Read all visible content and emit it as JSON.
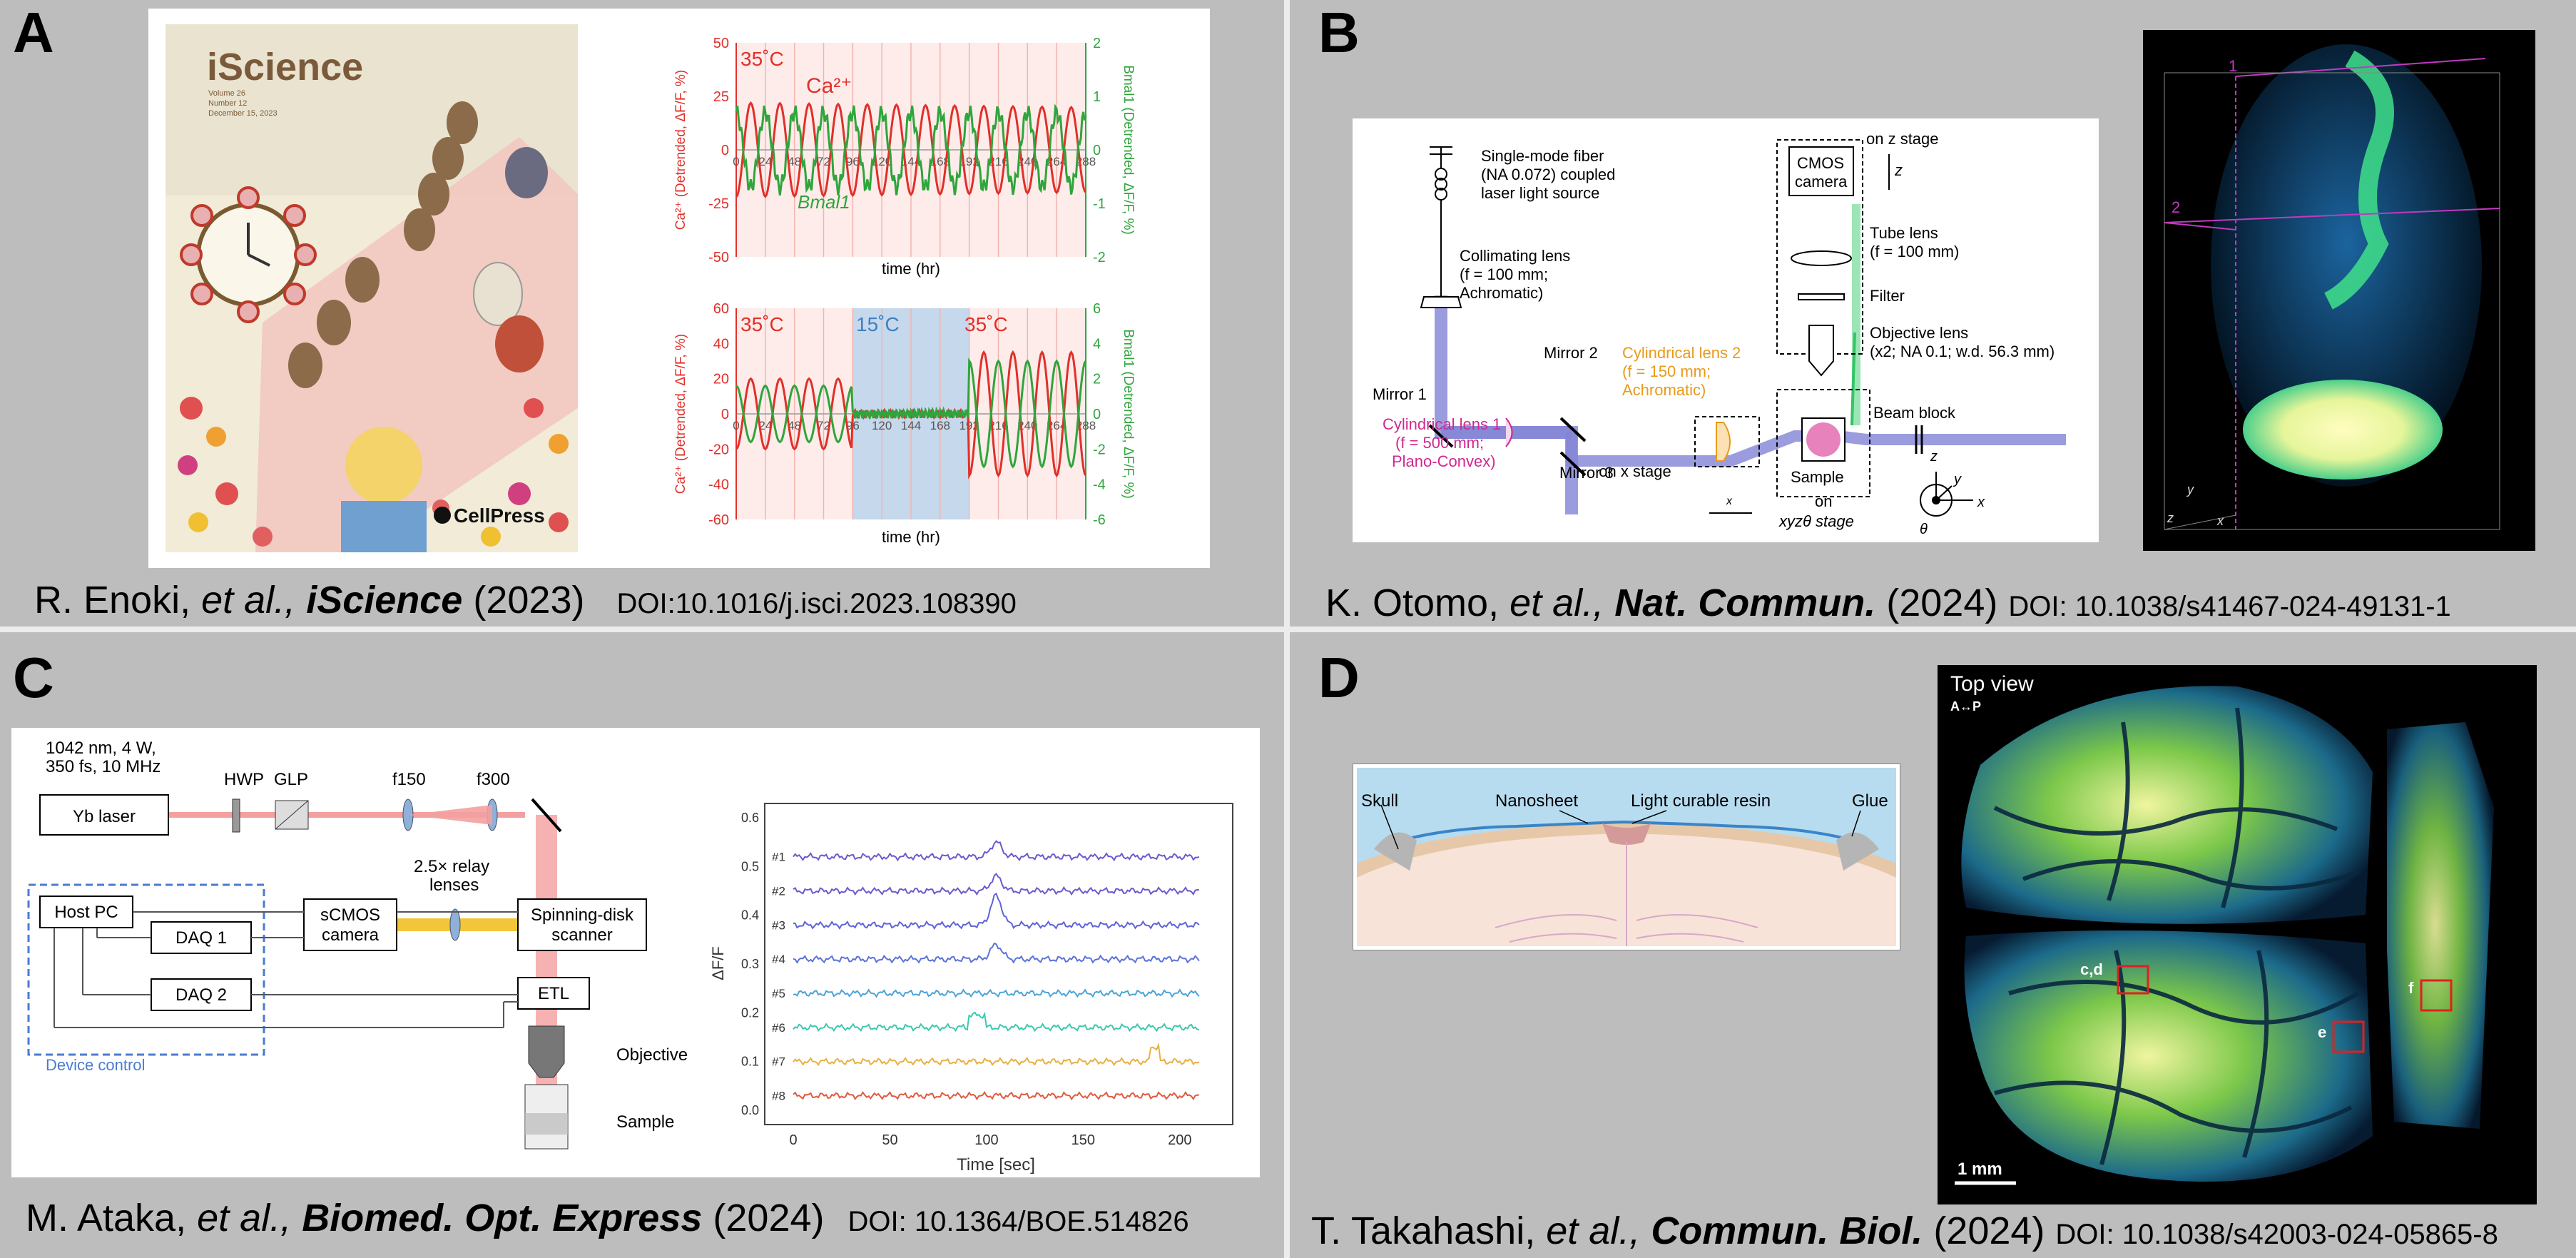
{
  "panels": [
    {
      "letter": "A",
      "author": "R. Enoki,",
      "etal": "et al.,",
      "journal": "iScience",
      "year": "(2023)",
      "doi": "DOI:10.1016/j.isci.2023.108390"
    },
    {
      "letter": "B",
      "author": "K. Otomo,",
      "etal": "et al.,",
      "journal": "Nat. Commun.",
      "year": "(2024)",
      "doi": "DOI: 10.1038/s41467-024-49131-1"
    },
    {
      "letter": "C",
      "author": "M. Ataka,",
      "etal": "et al.,",
      "journal": "Biomed. Opt. Express",
      "year": "(2024)",
      "doi": "DOI: 10.1364/BOE.514826"
    },
    {
      "letter": "D",
      "author": "T. Takahashi,",
      "etal": "et al.,",
      "journal": "Commun. Biol.",
      "year": "(2024)",
      "doi": "DOI: 10.1038/s42003-024-05865-8"
    }
  ],
  "cover": {
    "title": "iScience",
    "volume": "Volume 26",
    "number": "Number 12",
    "date": "December 15, 2023",
    "publisher": "CellPress"
  },
  "chart_data": [
    {
      "type": "line",
      "title": "35˚C",
      "x": [
        0,
        24,
        48,
        72,
        96,
        120,
        144,
        168,
        192,
        216,
        240,
        264,
        288
      ],
      "xlabel": "time (hr)",
      "ylabel": "Ca²⁺ (Detrended, ΔF/F, %)",
      "ylabel2": "Bmal1 (Detrended, ΔF/F, %)",
      "ylim": [
        -50,
        50
      ],
      "yticks": [
        50,
        25,
        0,
        -25,
        -50
      ],
      "ylim2": [
        -2,
        2
      ],
      "yticks2": [
        2,
        1,
        0,
        -1,
        -2
      ],
      "xtick_labels": [
        "0",
        "24",
        "48",
        "72",
        "96",
        "120",
        "144",
        "168",
        "192",
        "216",
        "240",
        "264",
        "288"
      ],
      "series": [
        {
          "name": "Ca²⁺",
          "color": "#e0302a",
          "period": 24,
          "amplitude": 22
        },
        {
          "name": "Bmal1",
          "color": "#2fa53c",
          "period": 24,
          "amplitude": 0.7
        }
      ],
      "temperature": "35˚C"
    },
    {
      "type": "line",
      "x": [
        0,
        24,
        48,
        72,
        96,
        120,
        144,
        168,
        192,
        216,
        240,
        264,
        288
      ],
      "xlabel": "time (hr)",
      "ylabel": "Ca²⁺ (Detrended, ΔF/F, %)",
      "ylabel2": "Bmal1 (Detrended, ΔF/F, %)",
      "ylim": [
        -60,
        60
      ],
      "yticks": [
        60,
        40,
        20,
        0,
        -20,
        -40,
        -60
      ],
      "ylim2": [
        -6,
        6
      ],
      "yticks2": [
        6,
        4,
        2,
        0,
        -2,
        -4,
        -6
      ],
      "xtick_labels": [
        "0",
        "24",
        "48",
        "72",
        "96",
        "120",
        "144",
        "168",
        "192",
        "216",
        "240",
        "264",
        "288"
      ],
      "temperatures": [
        "35˚C",
        "15˚C",
        "35˚C"
      ],
      "cold_window": [
        96,
        192
      ],
      "series": [
        {
          "name": "Ca²⁺",
          "color": "#e0302a"
        },
        {
          "name": "Bmal1",
          "color": "#2fa53c"
        }
      ]
    },
    {
      "type": "line",
      "xlabel": "Time [sec]",
      "ylabel": "ΔF/F",
      "xticks": [
        0,
        50,
        100,
        150,
        200
      ],
      "yticks": [
        0.6,
        0.5,
        0.4,
        0.3,
        0.2,
        0.1,
        0.0
      ],
      "series": [
        {
          "name": "#1",
          "color": "#6a5acd"
        },
        {
          "name": "#2",
          "color": "#6a5acd"
        },
        {
          "name": "#3",
          "color": "#5f63d8"
        },
        {
          "name": "#4",
          "color": "#5a72d8"
        },
        {
          "name": "#5",
          "color": "#4aa3d8"
        },
        {
          "name": "#6",
          "color": "#3cc8b0"
        },
        {
          "name": "#7",
          "color": "#e8b040"
        },
        {
          "name": "#8",
          "color": "#e05a40"
        }
      ]
    }
  ],
  "chartA": {
    "ca_label": "Ca²⁺",
    "bmal_label": "Bmal1",
    "temp1": "35˚C",
    "temp2": "35˚C",
    "temp3": "15˚C",
    "temp4": "35˚C",
    "xlabel": "time (hr)"
  },
  "diagramB": {
    "fiber": "Single-mode fiber",
    "fiber2": "(NA 0.072) coupled",
    "fiber3": "laser light source",
    "coll": "Collimating lens",
    "coll2": "(f = 100 mm;",
    "coll3": "Achromatic)",
    "mirror1": "Mirror 1",
    "mirror2": "Mirror 2",
    "mirror3": "Mirror 3",
    "cyl1": "Cylindrical lens 1",
    "cyl1b": "(f = 500 mm;",
    "cyl1c": "Plano-Convex)",
    "cyl2": "Cylindrical lens 2",
    "cyl2b": "(f = 150 mm;",
    "cyl2c": "Achromatic)",
    "onx": "on x stage",
    "cmos": "CMOS",
    "cmos2": "camera",
    "onz": "on z stage",
    "z": "z",
    "tube": "Tube lens",
    "tube2": "(f = 100 mm)",
    "filter": "Filter",
    "obj": "Objective lens",
    "obj2": "(x2; NA 0.1; w.d. 56.3 mm)",
    "beam": "Beam block",
    "sample": "Sample",
    "on": "on",
    "stage": "xyzθ stage",
    "axz": "z",
    "axy": "y",
    "axx": "x",
    "axt": "θ",
    "xarrow": "x"
  },
  "volumeB": {
    "l1": "1",
    "l2": "2",
    "ax_y": "y",
    "ax_z": "z",
    "ax_x": "x"
  },
  "diagramC": {
    "laser_spec1": "1042 nm, 4 W,",
    "laser_spec2": "350 fs, 10 MHz",
    "laser": "Yb laser",
    "hwp": "HWP",
    "glp": "GLP",
    "f150": "f150",
    "f300": "f300",
    "relay1": "2.5× relay",
    "relay2": "lenses",
    "hostpc": "Host PC",
    "daq1": "DAQ 1",
    "daq2": "DAQ 2",
    "scmos1": "sCMOS",
    "scmos2": "camera",
    "spin1": "Spinning-disk",
    "spin2": "scanner",
    "etl": "ETL",
    "objective": "Objective",
    "sample": "Sample",
    "devctrl": "Device control"
  },
  "diagramD": {
    "skull": "Skull",
    "nanosheet": "Nanosheet",
    "resin": "Light curable resin",
    "glue": "Glue"
  },
  "imageD": {
    "topview": "Top view",
    "axis": "A↔P",
    "cd": "c,d",
    "e": "e",
    "f": "f",
    "scale": "1 mm"
  }
}
